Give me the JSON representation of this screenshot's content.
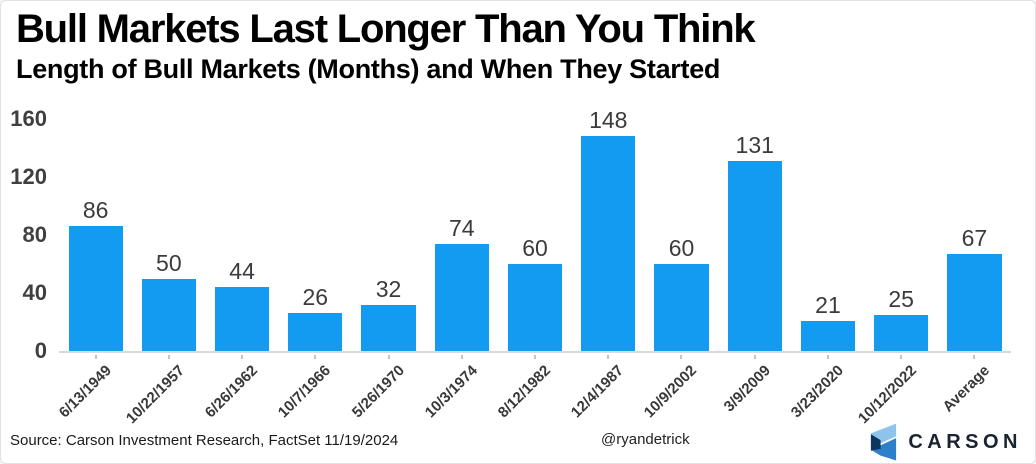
{
  "header": {
    "title": "Bull Markets Last Longer Than You Think",
    "subtitle": "Length of Bull Markets (Months) and When They Started"
  },
  "chart_data": {
    "type": "bar",
    "title": "Bull Markets Last Longer Than You Think",
    "subtitle": "Length of Bull Markets (Months) and When They Started",
    "categories": [
      "6/13/1949",
      "10/22/1957",
      "6/26/1962",
      "10/7/1966",
      "5/26/1970",
      "10/3/1974",
      "8/12/1982",
      "12/4/1987",
      "10/9/2002",
      "3/9/2009",
      "3/23/2020",
      "10/12/2022",
      "Average"
    ],
    "values": [
      86,
      50,
      44,
      26,
      32,
      74,
      60,
      148,
      60,
      131,
      21,
      25,
      67
    ],
    "xlabel": "",
    "ylabel": "",
    "ylim": [
      0,
      160
    ],
    "yticks": [
      0,
      40,
      80,
      120,
      160
    ],
    "grid": false,
    "legend": false,
    "value_labels": true,
    "bar_color": "#129bf1"
  },
  "footer": {
    "source": "Source: Carson Investment Research, FactSet 11/19/2024",
    "handle": "@ryandetrick",
    "brand": "CARSON"
  },
  "colors": {
    "bar": "#129bf1",
    "axis_text": "#3f3f3f",
    "value_text": "#3b3b3b",
    "baseline": "#d9d9d9",
    "logo_light": "#8ec4ec",
    "logo_mid": "#2e7fc9",
    "logo_dark": "#0e3560"
  }
}
